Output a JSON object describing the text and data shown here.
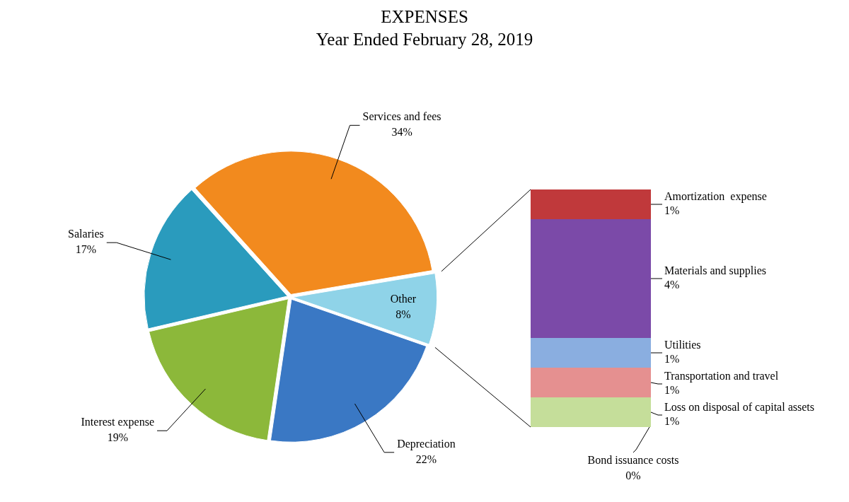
{
  "chart_data": [
    {
      "type": "pie",
      "title": "EXPENSES",
      "subtitle": "Year Ended February 28, 2019",
      "categories": [
        "Services and fees",
        "Other",
        "Depreciation",
        "Interest expense",
        "Salaries"
      ],
      "values": [
        34,
        8,
        22,
        19,
        17
      ],
      "value_labels": [
        "34%",
        "8%",
        "22%",
        "19%",
        "17%"
      ],
      "colors": [
        "#f28a1e",
        "#8fd3e8",
        "#3a78c4",
        "#8cb83a",
        "#2a9bbd"
      ],
      "legend": false
    },
    {
      "type": "bar",
      "stacked": true,
      "categories": [
        null
      ],
      "legend": false,
      "annotations": [
        "Bond issuance costs",
        "0%"
      ],
      "series": [
        {
          "name": "Loss on disposal of capital assets",
          "color": "#c5de9a",
          "values": [
            1
          ],
          "value_labels": [
            "1%"
          ]
        },
        {
          "name": "Transportation and travel",
          "color": "#e59090",
          "values": [
            1
          ],
          "value_labels": [
            "1%"
          ]
        },
        {
          "name": "Utilities",
          "color": "#8aaee0",
          "values": [
            1
          ],
          "value_labels": [
            "1%"
          ]
        },
        {
          "name": "Materials and supplies",
          "color": "#7b4aa8",
          "values": [
            4
          ],
          "value_labels": [
            "4%"
          ]
        },
        {
          "name": "Amortization  expense",
          "color": "#c0393b",
          "values": [
            1
          ],
          "value_labels": [
            "1%"
          ]
        }
      ]
    }
  ]
}
